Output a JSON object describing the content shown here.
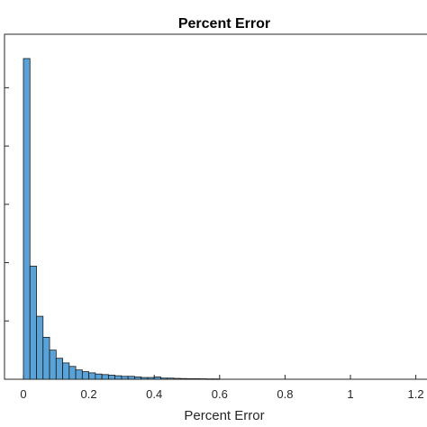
{
  "chart_data": {
    "type": "bar",
    "title": "Percent Error",
    "xlabel": "Percent Error",
    "ylabel": "",
    "xlim": [
      -0.02,
      1.23
    ],
    "ylim": [
      0,
      5.5
    ],
    "bin_width": 0.02,
    "x_ticks": [
      0,
      0.2,
      0.4,
      0.6,
      0.8,
      1,
      1.2
    ],
    "x_tick_labels": [
      "0",
      "0.2",
      "0.4",
      "0.6",
      "0.8",
      "1",
      "1.2"
    ],
    "y_ticks": [
      1,
      2,
      3,
      4,
      5
    ],
    "grid": false,
    "bar_fill": "#5aa3d9",
    "bar_edge": "#1a1a1a",
    "bins": [
      {
        "x": 0.0,
        "value": 5.5
      },
      {
        "x": 0.02,
        "value": 1.94
      },
      {
        "x": 0.04,
        "value": 1.08
      },
      {
        "x": 0.06,
        "value": 0.72
      },
      {
        "x": 0.08,
        "value": 0.5
      },
      {
        "x": 0.1,
        "value": 0.36
      },
      {
        "x": 0.12,
        "value": 0.28
      },
      {
        "x": 0.14,
        "value": 0.22
      },
      {
        "x": 0.16,
        "value": 0.16
      },
      {
        "x": 0.18,
        "value": 0.13
      },
      {
        "x": 0.2,
        "value": 0.11
      },
      {
        "x": 0.22,
        "value": 0.09
      },
      {
        "x": 0.24,
        "value": 0.08
      },
      {
        "x": 0.26,
        "value": 0.07
      },
      {
        "x": 0.28,
        "value": 0.06
      },
      {
        "x": 0.3,
        "value": 0.05
      },
      {
        "x": 0.32,
        "value": 0.05
      },
      {
        "x": 0.34,
        "value": 0.04
      },
      {
        "x": 0.36,
        "value": 0.03
      },
      {
        "x": 0.38,
        "value": 0.03
      },
      {
        "x": 0.4,
        "value": 0.04
      },
      {
        "x": 0.42,
        "value": 0.02
      },
      {
        "x": 0.44,
        "value": 0.02
      },
      {
        "x": 0.46,
        "value": 0.015
      },
      {
        "x": 0.48,
        "value": 0.012
      },
      {
        "x": 0.5,
        "value": 0.01
      },
      {
        "x": 0.52,
        "value": 0.01
      },
      {
        "x": 0.54,
        "value": 0.008
      },
      {
        "x": 0.56,
        "value": 0.006
      },
      {
        "x": 0.58,
        "value": 0.006
      }
    ]
  }
}
